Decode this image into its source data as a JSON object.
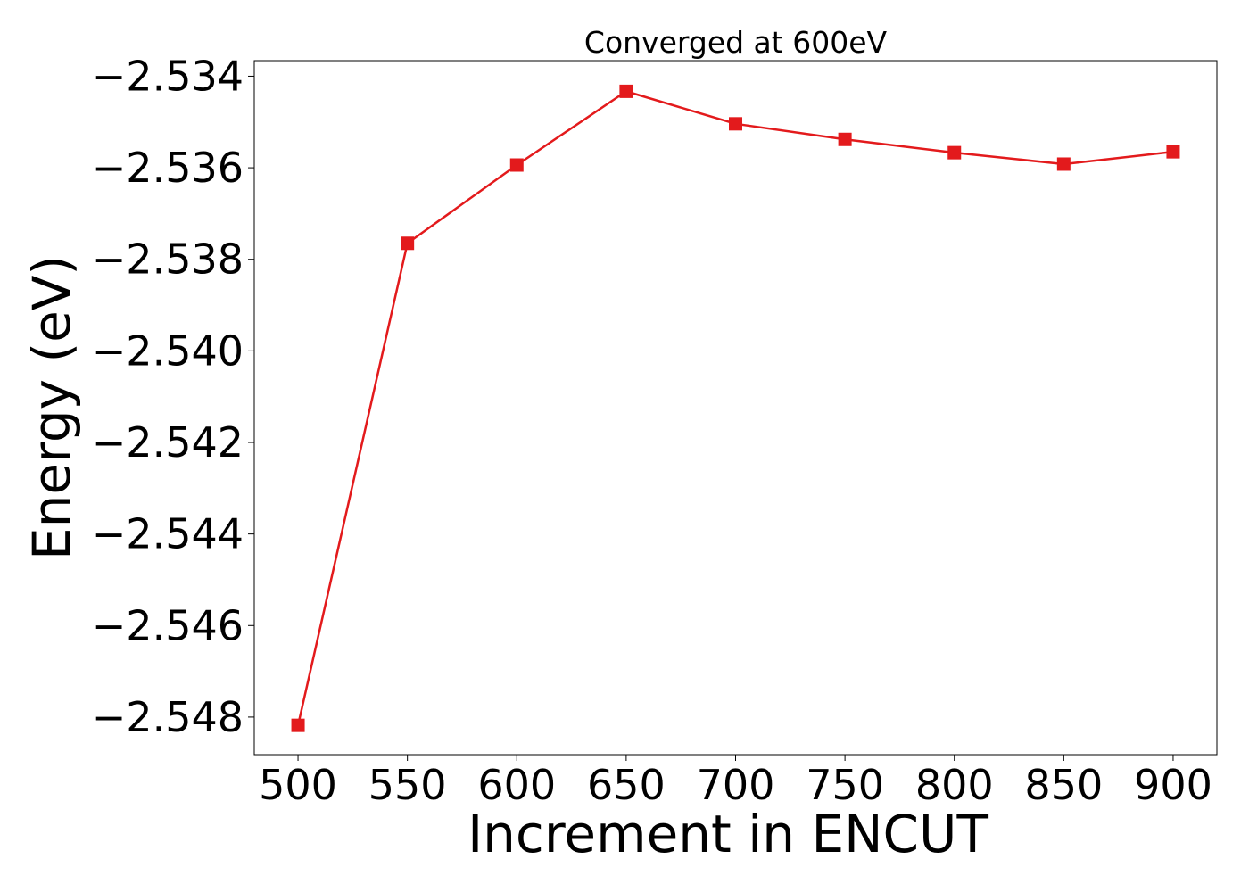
{
  "chart_data": {
    "type": "line",
    "title": "Converged at 600eV",
    "xlabel": "Increment in ENCUT",
    "ylabel": "Energy (eV)",
    "x": [
      500,
      550,
      600,
      650,
      700,
      750,
      800,
      850,
      900
    ],
    "series": [
      {
        "values": [
          -2.54818,
          -2.53765,
          -2.53594,
          -2.53433,
          -2.53504,
          -2.53538,
          -2.53567,
          -2.53592,
          -2.53565
        ],
        "color": "#e31a1c",
        "marker": "square"
      }
    ],
    "xticks": [
      500,
      550,
      600,
      650,
      700,
      750,
      800,
      850,
      900
    ],
    "xtick_labels": [
      "500",
      "550",
      "600",
      "650",
      "700",
      "750",
      "800",
      "850",
      "900"
    ],
    "yticks": [
      -2.548,
      -2.546,
      -2.544,
      -2.542,
      -2.54,
      -2.538,
      -2.536,
      -2.534
    ],
    "ytick_labels": [
      "−2.548",
      "−2.546",
      "−2.544",
      "−2.542",
      "−2.540",
      "−2.538",
      "−2.536",
      "−2.534"
    ],
    "xlim": [
      480,
      920
    ],
    "ylim": [
      -2.54882,
      -2.53366
    ],
    "grid": false,
    "legend": "none"
  }
}
